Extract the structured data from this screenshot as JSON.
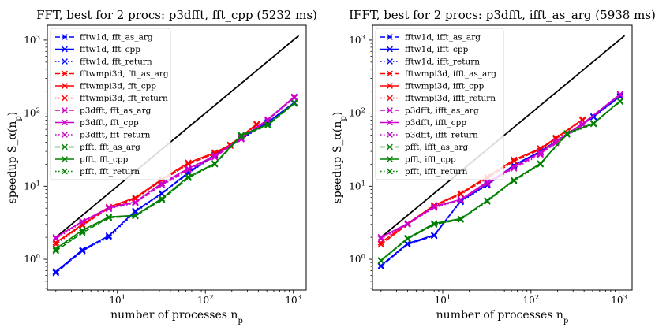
{
  "chart_data": [
    {
      "type": "line",
      "title": "FFT, best for 2 procs: p3dfft, fft_cpp (5232 ms)",
      "xlabel": "number of processes n_p",
      "ylabel": "speedup S_α(n_p)",
      "xscale": "log",
      "yscale": "log",
      "xlim": [
        1.6,
        1400
      ],
      "ylim": [
        0.38,
        1600
      ],
      "x_ticks": [
        {
          "v": 10,
          "b": "10",
          "e": "1"
        },
        {
          "v": 100,
          "b": "10",
          "e": "2"
        },
        {
          "v": 1000,
          "b": "10",
          "e": "3"
        }
      ],
      "y_ticks": [
        {
          "v": 1,
          "b": "10",
          "e": "0"
        },
        {
          "v": 10,
          "b": "10",
          "e": "1"
        },
        {
          "v": 100,
          "b": "10",
          "e": "2"
        },
        {
          "v": 1000,
          "b": "10",
          "e": "3"
        }
      ],
      "ideal": {
        "x": [
          2,
          1152
        ],
        "y": [
          2,
          1152
        ]
      },
      "series": [
        {
          "name": "fftw1d, fft_as_arg",
          "color": "#0000ff",
          "style": "dashed",
          "x": [
            2,
            4,
            8,
            16,
            32,
            64,
            128,
            512,
            1024
          ],
          "y": [
            0.65,
            1.3,
            2.1,
            4.5,
            8.0,
            15,
            27,
            75,
            140
          ]
        },
        {
          "name": "fftw1d, fft_cpp",
          "color": "#0000ff",
          "style": "solid",
          "x": [
            2,
            4,
            8,
            16,
            32,
            64,
            128,
            512,
            1024
          ],
          "y": [
            0.68,
            1.35,
            2.1,
            4.6,
            8.0,
            15.5,
            27,
            75,
            140
          ]
        },
        {
          "name": "fftw1d, fft_return",
          "color": "#0000ff",
          "style": "dotted",
          "x": [
            2,
            4,
            8,
            16,
            32,
            64,
            128,
            512,
            1024
          ],
          "y": [
            0.66,
            1.3,
            2.0,
            4.4,
            7.8,
            15,
            26,
            74,
            138
          ]
        },
        {
          "name": "fftwmpi3d, fft_as_arg",
          "color": "#ff0000",
          "style": "dashed",
          "x": [
            2,
            4,
            8,
            16,
            32,
            64,
            128,
            192,
            384
          ],
          "y": [
            1.7,
            2.9,
            5.0,
            6.8,
            12,
            20,
            28,
            36,
            70
          ]
        },
        {
          "name": "fftwmpi3d, fft_cpp",
          "color": "#ff0000",
          "style": "solid",
          "x": [
            2,
            4,
            8,
            16,
            32,
            64,
            128,
            192,
            384
          ],
          "y": [
            1.7,
            3.0,
            5.2,
            7.0,
            12.5,
            21,
            29,
            37,
            71
          ]
        },
        {
          "name": "fftwmpi3d, fft_return",
          "color": "#ff0000",
          "style": "dotted",
          "x": [
            2,
            4,
            8,
            16,
            32,
            64,
            128,
            192,
            384
          ],
          "y": [
            1.6,
            2.9,
            5.0,
            6.7,
            12,
            20,
            28,
            36,
            69
          ]
        },
        {
          "name": "p3dfft, fft_as_arg",
          "color": "#cc00cc",
          "style": "dashed",
          "x": [
            2,
            4,
            8,
            16,
            32,
            64,
            128,
            256,
            512,
            1024
          ],
          "y": [
            2.0,
            3.3,
            5.0,
            6.0,
            10.5,
            17,
            25,
            45,
            80,
            165
          ]
        },
        {
          "name": "p3dfft, fft_cpp",
          "color": "#cc00cc",
          "style": "solid",
          "x": [
            2,
            4,
            8,
            16,
            32,
            64,
            128,
            256,
            512,
            1024
          ],
          "y": [
            2.0,
            3.3,
            5.1,
            6.1,
            11,
            17.5,
            26,
            46,
            82,
            168
          ]
        },
        {
          "name": "p3dfft, fft_return",
          "color": "#cc00cc",
          "style": "dotted",
          "x": [
            2,
            4,
            8,
            16,
            32,
            64,
            128,
            256,
            512,
            1024
          ],
          "y": [
            1.9,
            3.2,
            4.9,
            5.9,
            10.3,
            16.5,
            25,
            44,
            79,
            162
          ]
        },
        {
          "name": "pfft, fft_as_arg",
          "color": "#008000",
          "style": "dashed",
          "x": [
            2,
            4,
            8,
            16,
            32,
            64,
            128,
            256,
            512,
            1024
          ],
          "y": [
            1.3,
            2.3,
            3.7,
            3.9,
            6.5,
            13,
            20,
            48,
            68,
            135
          ]
        },
        {
          "name": "pfft, fft_cpp",
          "color": "#008000",
          "style": "solid",
          "x": [
            2,
            4,
            8,
            16,
            32,
            64,
            128,
            256,
            512,
            1024
          ],
          "y": [
            1.4,
            2.5,
            3.8,
            4.0,
            6.8,
            13.5,
            20.5,
            50,
            70,
            138
          ]
        },
        {
          "name": "pfft, fft_return",
          "color": "#008000",
          "style": "dotted",
          "x": [
            2,
            4,
            8,
            16,
            32,
            64,
            128,
            256,
            512,
            1024
          ],
          "y": [
            1.35,
            2.4,
            3.7,
            3.9,
            6.6,
            13,
            20,
            49,
            69,
            136
          ]
        }
      ]
    },
    {
      "type": "line",
      "title": "IFFT, best for 2 procs: p3dfft, ifft_as_arg (5938 ms)",
      "xlabel": "number of processes n_p",
      "ylabel": "speedup S_α(n_p)",
      "xscale": "log",
      "yscale": "log",
      "xlim": [
        1.6,
        1400
      ],
      "ylim": [
        0.38,
        1600
      ],
      "x_ticks": [
        {
          "v": 10,
          "b": "10",
          "e": "1"
        },
        {
          "v": 100,
          "b": "10",
          "e": "2"
        },
        {
          "v": 1000,
          "b": "10",
          "e": "3"
        }
      ],
      "y_ticks": [
        {
          "v": 1,
          "b": "10",
          "e": "0"
        },
        {
          "v": 10,
          "b": "10",
          "e": "1"
        },
        {
          "v": 100,
          "b": "10",
          "e": "2"
        },
        {
          "v": 1000,
          "b": "10",
          "e": "3"
        }
      ],
      "ideal": {
        "x": [
          2,
          1152
        ],
        "y": [
          2,
          1152
        ]
      },
      "series": [
        {
          "name": "fftw1d, ifft_as_arg",
          "color": "#0000ff",
          "style": "dashed",
          "x": [
            2,
            4,
            8,
            16,
            32,
            64,
            128,
            512,
            1024
          ],
          "y": [
            0.8,
            1.6,
            2.1,
            6.3,
            10.5,
            19,
            30,
            90,
            170
          ]
        },
        {
          "name": "fftw1d, ifft_cpp",
          "color": "#0000ff",
          "style": "solid",
          "x": [
            2,
            4,
            8,
            16,
            32,
            64,
            128,
            512,
            1024
          ],
          "y": [
            0.82,
            1.65,
            2.15,
            6.3,
            10.5,
            19.5,
            30,
            90,
            170
          ]
        },
        {
          "name": "fftw1d, ifft_return",
          "color": "#0000ff",
          "style": "dotted",
          "x": [
            2,
            4,
            8,
            16,
            32,
            64,
            128,
            512,
            1024
          ],
          "y": [
            0.8,
            1.6,
            2.1,
            6.1,
            10.3,
            19,
            29,
            88,
            168
          ]
        },
        {
          "name": "fftwmpi3d, ifft_as_arg",
          "color": "#ff0000",
          "style": "dashed",
          "x": [
            2,
            4,
            8,
            16,
            32,
            64,
            128,
            192,
            384
          ],
          "y": [
            1.6,
            3.0,
            5.4,
            7.8,
            13,
            22,
            32,
            45,
            80
          ]
        },
        {
          "name": "fftwmpi3d, ifft_cpp",
          "color": "#ff0000",
          "style": "solid",
          "x": [
            2,
            4,
            8,
            16,
            32,
            64,
            128,
            192,
            384
          ],
          "y": [
            1.7,
            3.1,
            5.5,
            8.0,
            13.5,
            23,
            33,
            46,
            82
          ]
        },
        {
          "name": "fftwmpi3d, ifft_return",
          "color": "#ff0000",
          "style": "dotted",
          "x": [
            2,
            4,
            8,
            16,
            32,
            64,
            128,
            192,
            384
          ],
          "y": [
            1.6,
            3.0,
            5.3,
            7.7,
            12.8,
            22,
            32,
            44,
            79
          ]
        },
        {
          "name": "p3dfft, ifft_as_arg",
          "color": "#cc00cc",
          "style": "dashed",
          "x": [
            2,
            4,
            8,
            16,
            32,
            64,
            128,
            192,
            384,
            1024
          ],
          "y": [
            2.0,
            3.0,
            5.2,
            6.5,
            11,
            18,
            28,
            40,
            70,
            180
          ]
        },
        {
          "name": "p3dfft, ifft_cpp",
          "color": "#cc00cc",
          "style": "solid",
          "x": [
            2,
            4,
            8,
            16,
            32,
            64,
            128,
            192,
            384,
            1024
          ],
          "y": [
            2.0,
            3.1,
            5.3,
            6.6,
            11.5,
            18.5,
            29,
            41,
            72,
            182
          ]
        },
        {
          "name": "p3dfft, ifft_return",
          "color": "#cc00cc",
          "style": "dotted",
          "x": [
            2,
            4,
            8,
            16,
            32,
            64,
            128,
            192,
            384,
            1024
          ],
          "y": [
            1.9,
            3.0,
            5.1,
            6.4,
            10.8,
            17.5,
            27,
            39,
            69,
            178
          ]
        },
        {
          "name": "pfft, ifft_as_arg",
          "color": "#008000",
          "style": "dashed",
          "x": [
            2,
            4,
            8,
            16,
            32,
            64,
            128,
            256,
            512,
            1024
          ],
          "y": [
            0.95,
            1.9,
            3.0,
            3.5,
            6.3,
            12,
            20,
            52,
            72,
            145
          ]
        },
        {
          "name": "pfft, ifft_cpp",
          "color": "#008000",
          "style": "solid",
          "x": [
            2,
            4,
            8,
            16,
            32,
            64,
            128,
            256,
            512,
            1024
          ],
          "y": [
            0.97,
            1.95,
            3.1,
            3.6,
            6.4,
            12.2,
            20.5,
            53,
            73,
            147
          ]
        },
        {
          "name": "pfft, ifft_return",
          "color": "#008000",
          "style": "dotted",
          "x": [
            2,
            4,
            8,
            16,
            32,
            64,
            128,
            256,
            512,
            1024
          ],
          "y": [
            0.95,
            1.9,
            3.0,
            3.5,
            6.2,
            11.8,
            20,
            51,
            71,
            144
          ]
        }
      ]
    }
  ]
}
